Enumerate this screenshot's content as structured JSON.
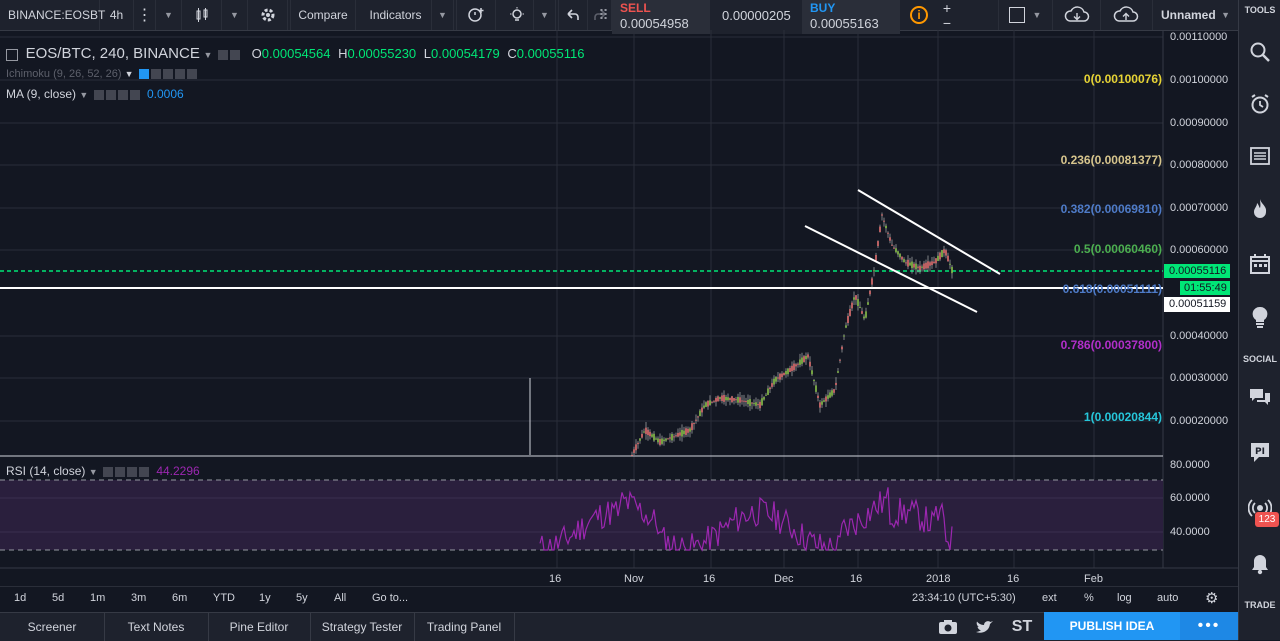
{
  "toolbar": {
    "symbol": "BINANCE:EOSBT",
    "interval": "4h",
    "compare": "Compare",
    "indicators": "Indicators",
    "sell_label": "SELL",
    "sell_price": "0.00054958",
    "spread": "0.00000205",
    "buy_label": "BUY",
    "buy_price": "0.00055163",
    "layout_name": "Unnamed"
  },
  "legend": {
    "title": "EOS/BTC, 240, BINANCE",
    "open_label": "O",
    "open": "0.00054564",
    "high_label": "H",
    "high": "0.00055230",
    "low_label": "L",
    "low": "0.00054179",
    "close_label": "C",
    "close": "0.00055116",
    "ichimoku": "Ichimoku (9, 26, 52, 26)",
    "ma": "MA (9, close)",
    "ma_value": "0.0006",
    "rsi": "RSI (14, close)",
    "rsi_value": "44.2296"
  },
  "price_axis": [
    "0.00110000",
    "0.00100000",
    "0.00090000",
    "0.00080000",
    "0.00070000",
    "0.00060000",
    "0.00040000",
    "0.00030000",
    "0.00020000"
  ],
  "price_tags": {
    "last": "0.00055116",
    "countdown": "01:55:49",
    "line": "0.00051159"
  },
  "fib_levels": [
    {
      "label": "0(0.00100076)",
      "color": "#e6d335"
    },
    {
      "label": "0.236(0.00081377)",
      "color": "#d7c58d"
    },
    {
      "label": "0.382(0.00069810)",
      "color": "#4e7bc8"
    },
    {
      "label": "0.5(0.00060460)",
      "color": "#4caf50"
    },
    {
      "label": "0.618(0.00051111)",
      "color": "#4e7bc8"
    },
    {
      "label": "0.786(0.00037800)",
      "color": "#b12fc9"
    },
    {
      "label": "1(0.00020844)",
      "color": "#26c6da"
    }
  ],
  "rsi_axis": [
    "80.0000",
    "60.0000",
    "40.0000"
  ],
  "time_axis": [
    "16",
    "Nov",
    "16",
    "Dec",
    "16",
    "2018",
    "16",
    "Feb"
  ],
  "ranges": [
    "1d",
    "5d",
    "1m",
    "3m",
    "6m",
    "YTD",
    "1y",
    "5y",
    "All",
    "Go to..."
  ],
  "status": {
    "clock": "23:34:10 (UTC+5:30)",
    "ext": "ext",
    "percent": "%",
    "log": "log",
    "auto": "auto"
  },
  "panels": [
    "Screener",
    "Text Notes",
    "Pine Editor",
    "Strategy Tester",
    "Trading Panel"
  ],
  "publish": "PUBLISH IDEA",
  "sidebar": {
    "tools": "TOOLS",
    "social": "SOCIAL",
    "trade": "TRADE",
    "badge": "123"
  },
  "colors": {
    "sell": "#ef5350",
    "buy": "#2196f3",
    "green": "#00e676",
    "rsi_line": "#9c27b0",
    "accent": "#2196f3"
  }
}
